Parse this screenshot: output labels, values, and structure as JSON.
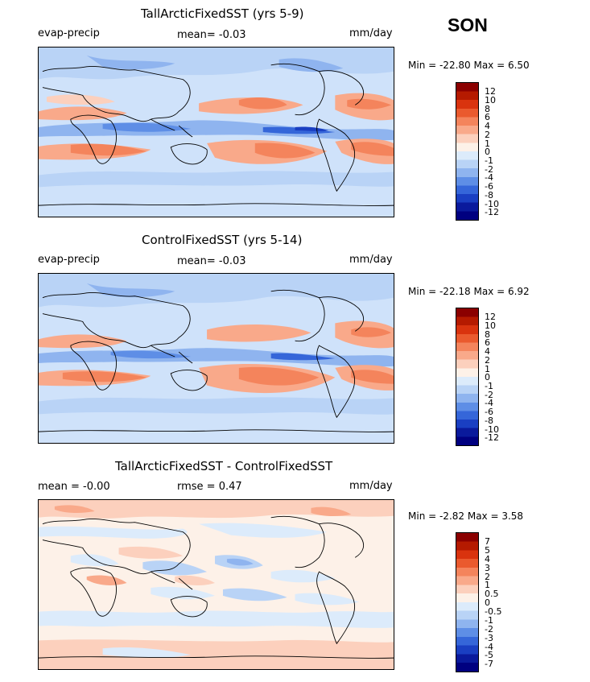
{
  "season": "SON",
  "panels": [
    {
      "title": "TallArcticFixedSST (yrs 5-9)",
      "left_label": "evap-precip",
      "center_label": "mean=   -0.03",
      "right_label": "mm/day",
      "minmax": "Min = -22.80 Max =   6.50",
      "colorbar": [
        "12",
        "10",
        "8",
        "6",
        "4",
        "2",
        "1",
        "0",
        "-1",
        "-2",
        "-4",
        "-6",
        "-8",
        "-10",
        "-12"
      ]
    },
    {
      "title": "ControlFixedSST (yrs 5-14)",
      "left_label": "evap-precip",
      "center_label": "mean=   -0.03",
      "right_label": "mm/day",
      "minmax": "Min = -22.18 Max =   6.92",
      "colorbar": [
        "12",
        "10",
        "8",
        "6",
        "4",
        "2",
        "1",
        "0",
        "-1",
        "-2",
        "-4",
        "-6",
        "-8",
        "-10",
        "-12"
      ]
    },
    {
      "title": "TallArcticFixedSST - ControlFixedSST",
      "left_label": "mean =   -0.00",
      "center_label": "rmse =    0.47",
      "right_label": "mm/day",
      "minmax": "Min =  -2.82 Max =   3.58",
      "colorbar": [
        "7",
        "5",
        "4",
        "3",
        "2",
        "1",
        "0.5",
        "0",
        "-0.5",
        "-1",
        "-2",
        "-3",
        "-4",
        "-5",
        "-7"
      ]
    }
  ],
  "colors": {
    "scale": [
      "#8b0000",
      "#b51a00",
      "#d9330e",
      "#ea5a2e",
      "#f4845c",
      "#f9a98a",
      "#fcd0bd",
      "#fdf1e8",
      "#dcebfb",
      "#b9d3f6",
      "#8fb4ef",
      "#5e8ee6",
      "#3566d9",
      "#1a3fc2",
      "#0a1a9c",
      "#000080"
    ],
    "ocean_base": "#cfe2fa",
    "land": "#ffffff",
    "coast": "#000000"
  }
}
